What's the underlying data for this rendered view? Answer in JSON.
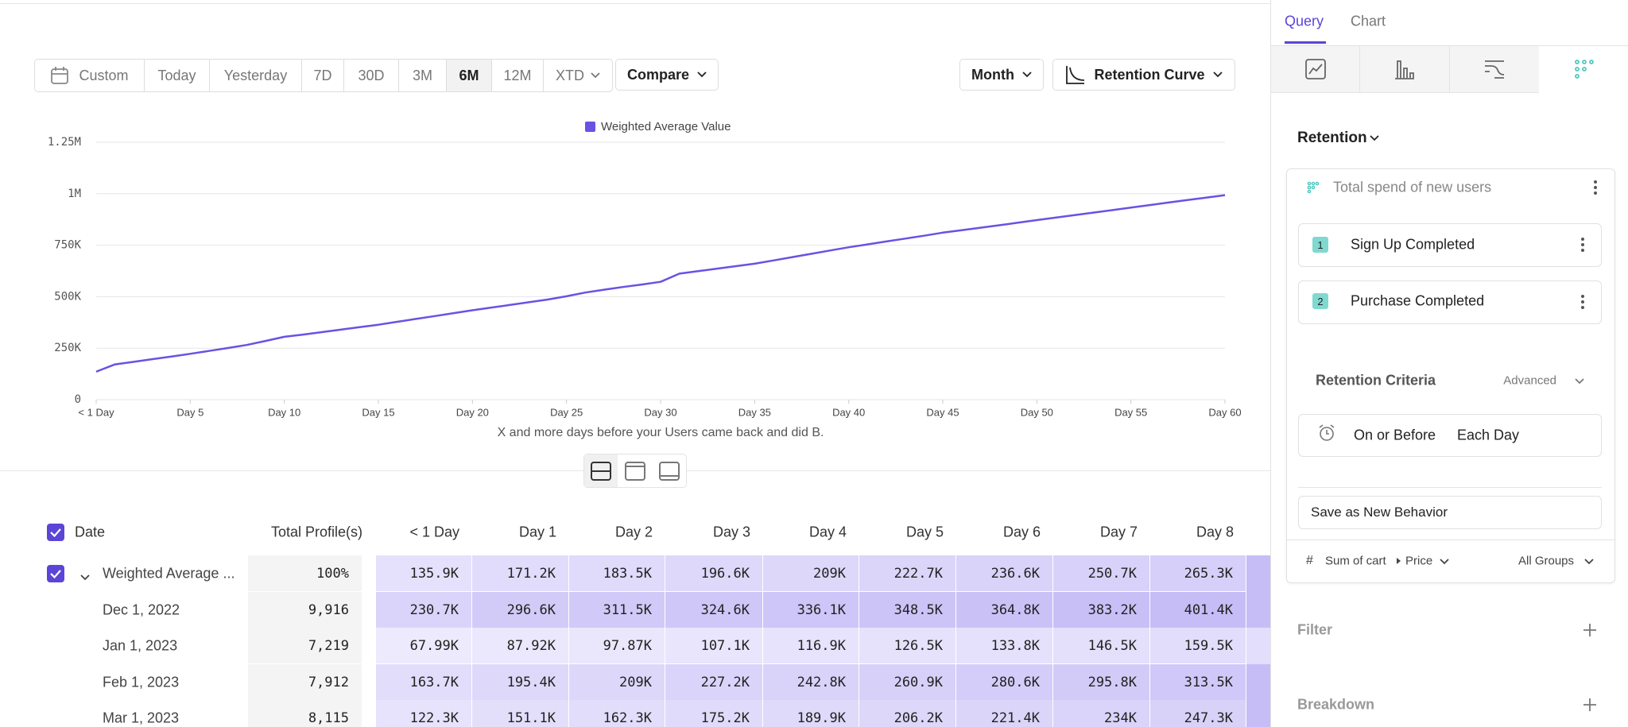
{
  "toolbar": {
    "date_ranges": [
      "Custom",
      "Today",
      "Yesterday",
      "7D",
      "30D",
      "3M",
      "6M",
      "12M",
      "XTD"
    ],
    "compare": "Compare",
    "interval": "Month",
    "chart_kind": "Retention Curve"
  },
  "chart_data": {
    "type": "line",
    "legend": "top",
    "x_label": "X and more days before your Users came back and did B.",
    "x": [
      0,
      1,
      2,
      3,
      4,
      5,
      6,
      7,
      8,
      9,
      10,
      11,
      12,
      13,
      14,
      15,
      16,
      17,
      18,
      19,
      20,
      21,
      22,
      23,
      24,
      25,
      26,
      27,
      28,
      29,
      30,
      31,
      32,
      33,
      34,
      35,
      36,
      37,
      38,
      39,
      40,
      41,
      42,
      43,
      44,
      45,
      46,
      47,
      48,
      49,
      50,
      51,
      52,
      53,
      54,
      55,
      56,
      57,
      58,
      59,
      60
    ],
    "series": [
      {
        "name": "Weighted Average Value",
        "color": "#6a52e3",
        "values": [
          135900,
          171200,
          183500,
          196600,
          209000,
          222700,
          236600,
          250700,
          265300,
          285000,
          305000,
          316000,
          328000,
          340000,
          352000,
          364000,
          378000,
          392000,
          406000,
          420000,
          434000,
          447000,
          460000,
          473000,
          486000,
          502000,
          520000,
          534000,
          547000,
          559000,
          572000,
          612000,
          624000,
          636000,
          648000,
          660000,
          676000,
          692000,
          708000,
          724000,
          740000,
          754000,
          768000,
          782000,
          796000,
          811000,
          823000,
          835000,
          847000,
          859000,
          872000,
          884000,
          896000,
          908000,
          920000,
          933000,
          945000,
          957000,
          969000,
          981000,
          993000
        ]
      }
    ],
    "xlim": [
      0,
      60
    ],
    "xticks": [
      {
        "value": 0,
        "label": "< 1 Day"
      },
      {
        "value": 5,
        "label": "Day 5"
      },
      {
        "value": 10,
        "label": "Day 10"
      },
      {
        "value": 15,
        "label": "Day 15"
      },
      {
        "value": 20,
        "label": "Day 20"
      },
      {
        "value": 25,
        "label": "Day 25"
      },
      {
        "value": 30,
        "label": "Day 30"
      },
      {
        "value": 35,
        "label": "Day 35"
      },
      {
        "value": 40,
        "label": "Day 40"
      },
      {
        "value": 45,
        "label": "Day 45"
      },
      {
        "value": 50,
        "label": "Day 50"
      },
      {
        "value": 55,
        "label": "Day 55"
      },
      {
        "value": 60,
        "label": "Day 60"
      }
    ],
    "ylim": [
      0,
      1250000
    ],
    "yticks": [
      0,
      {
        "value": 250000,
        "label": "250K"
      },
      {
        "value": 500000,
        "label": "500K"
      },
      {
        "value": 750000,
        "label": "750K"
      },
      {
        "value": 1000000,
        "label": "1M"
      },
      {
        "value": 1250000,
        "label": "1.25M"
      }
    ],
    "grid": true
  },
  "table": {
    "columns": [
      "Date",
      "Total Profile(s)",
      "< 1 Day",
      "Day 1",
      "Day 2",
      "Day 3",
      "Day 4",
      "Day 5",
      "Day 6",
      "Day 7",
      "Day 8"
    ],
    "rows": [
      [
        "Weighted Average ...",
        "100%",
        "135.9K",
        "171.2K",
        "183.5K",
        "196.6K",
        "209K",
        "222.7K",
        "236.6K",
        "250.7K",
        "265.3K"
      ],
      [
        "Dec 1, 2022",
        "9,916",
        "230.7K",
        "296.6K",
        "311.5K",
        "324.6K",
        "336.1K",
        "348.5K",
        "364.8K",
        "383.2K",
        "401.4K"
      ],
      [
        "Jan 1, 2023",
        "7,219",
        "67.99K",
        "87.92K",
        "97.87K",
        "107.1K",
        "116.9K",
        "126.5K",
        "133.8K",
        "146.5K",
        "159.5K"
      ],
      [
        "Feb 1, 2023",
        "7,912",
        "163.7K",
        "195.4K",
        "209K",
        "227.2K",
        "242.8K",
        "260.9K",
        "280.6K",
        "295.8K",
        "313.5K"
      ],
      [
        "Mar 1, 2023",
        "8,115",
        "122.3K",
        "151.1K",
        "162.3K",
        "175.2K",
        "189.9K",
        "206.2K",
        "221.4K",
        "234K",
        "247.3K"
      ]
    ]
  },
  "sidebar": {
    "tabs": [
      "Query",
      "Chart"
    ],
    "report": "Retention",
    "metric": "Total spend of new users",
    "steps": [
      {
        "number": "1",
        "label": "Sign Up Completed"
      },
      {
        "number": "2",
        "label": "Purchase Completed"
      }
    ],
    "criteria_title": "Retention Criteria",
    "criteria_mode": "Advanced",
    "criteria_when": "On or Before",
    "criteria_unit": "Each Day",
    "save": "Save as New Behavior",
    "measure_icon": "#",
    "measure_event": "Sum of cart",
    "measure_property": "Price",
    "groups": "All Groups",
    "filter": "Filter",
    "breakdown": "Breakdown"
  }
}
